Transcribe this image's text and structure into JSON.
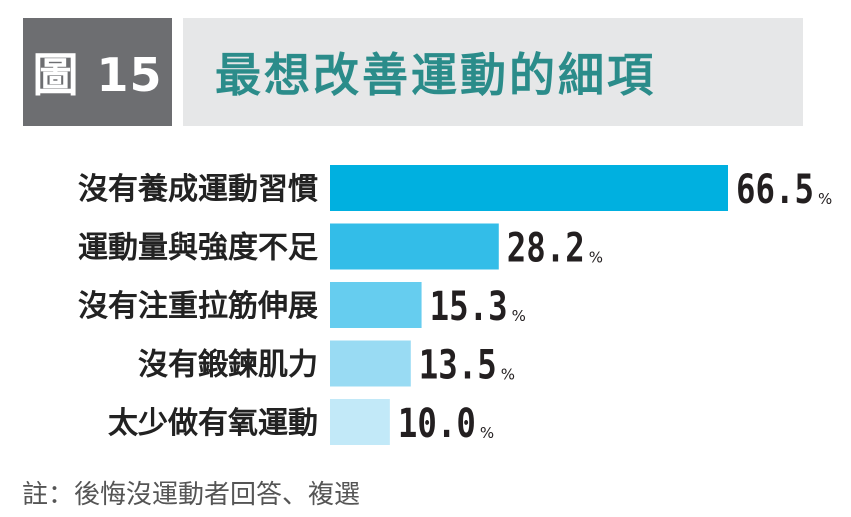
{
  "header": {
    "figure_label": "圖 15",
    "title": "最想改善運動的細項"
  },
  "chart_data": {
    "type": "bar",
    "orientation": "horizontal",
    "categories": [
      "沒有養成運動習慣",
      "運動量與強度不足",
      "沒有注重拉筋伸展",
      "沒有鍛鍊肌力",
      "太少做有氧運動"
    ],
    "values": [
      66.5,
      28.2,
      15.3,
      13.5,
      10.0
    ],
    "value_labels": [
      "66.5",
      "28.2",
      "15.3",
      "13.5",
      "10.0"
    ],
    "unit": "%",
    "bar_colors": [
      "#00b0e0",
      "#33bde8",
      "#66cdef",
      "#99dbf3",
      "#c2e9f8"
    ],
    "title": "最想改善運動的細項",
    "xlim": [
      0,
      66.5
    ]
  },
  "footnote": "註：後悔沒運動者回答、複選"
}
